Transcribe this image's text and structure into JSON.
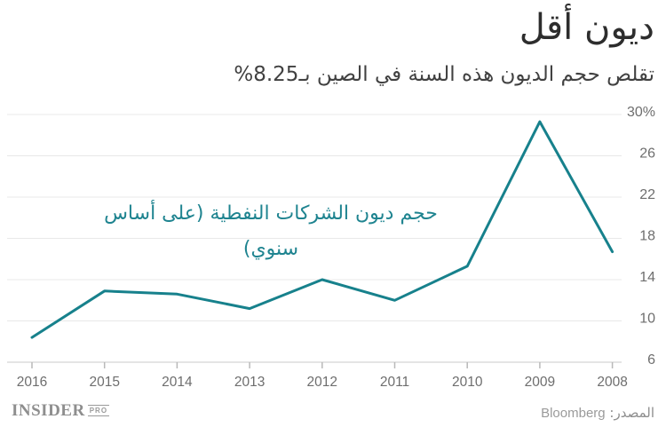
{
  "header": {
    "title": "ديون أقل",
    "subtitle": "تقلص حجم الديون هذه السنة في الصين بـ8.25%"
  },
  "chart_data": {
    "type": "line",
    "title": "ديون أقل",
    "subtitle": "تقلص حجم الديون هذه السنة في الصين بـ8.25%",
    "annotation": "حجم ديون الشركات النفطية (على أساس سنوي)",
    "categories": [
      "2016",
      "2015",
      "2014",
      "2013",
      "2012",
      "2011",
      "2010",
      "2009",
      "2008"
    ],
    "values": [
      8.4,
      12.9,
      12.6,
      11.2,
      14,
      12,
      15.3,
      29.3,
      16.7
    ],
    "xlabel": "",
    "ylabel": "",
    "ylim": [
      6,
      30
    ],
    "yticks": [
      30,
      26,
      22,
      18,
      14,
      10,
      6
    ],
    "ytick_labels": [
      "30%",
      "26",
      "22",
      "18",
      "14",
      "10",
      "6"
    ],
    "x_axis_direction": "rtl-reversed-years",
    "grid": true,
    "legend_position": "none",
    "line_color": "#17818C",
    "grid_color": "#e8e8e8",
    "axis_color": "#c9c9c9",
    "tick_color": "#b9b9b9",
    "label_color": "#6e6e6e"
  },
  "footer": {
    "logo_main": "INSIDER",
    "logo_sub": "PRO",
    "source_label": "المصدر:",
    "source_value": "Bloomberg"
  }
}
